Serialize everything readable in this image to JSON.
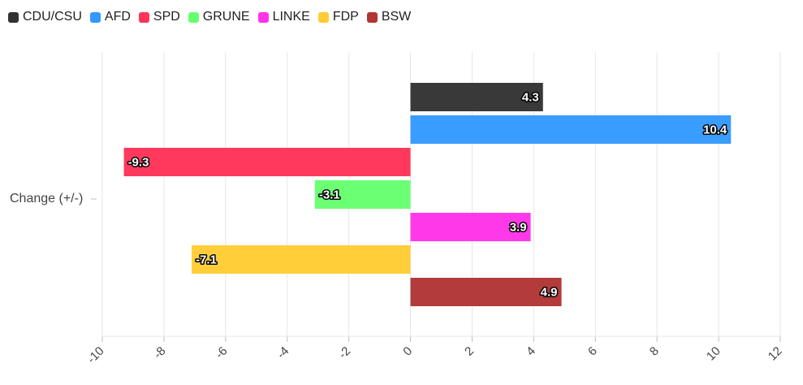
{
  "chart_data": {
    "type": "bar",
    "orientation": "horizontal",
    "categories": [
      "Change (+/-)"
    ],
    "series": [
      {
        "name": "CDU/CSU",
        "values": [
          4.3
        ],
        "color": "#333333"
      },
      {
        "name": "AFD",
        "values": [
          10.4
        ],
        "color": "#3399ff"
      },
      {
        "name": "SPD",
        "values": [
          -9.3
        ],
        "color": "#ff3358"
      },
      {
        "name": "GRUNE",
        "values": [
          -3.1
        ],
        "color": "#66ff70"
      },
      {
        "name": "LINKE",
        "values": [
          3.9
        ],
        "color": "#ff33e8"
      },
      {
        "name": "FDP",
        "values": [
          -7.1
        ],
        "color": "#ffcc33"
      },
      {
        "name": "BSW",
        "values": [
          4.9
        ],
        "color": "#b13535"
      }
    ],
    "xlim": [
      -10,
      12
    ],
    "xticks": [
      "-10",
      "-8",
      "-6",
      "-4",
      "-2",
      "0",
      "2",
      "4",
      "6",
      "8",
      "10",
      "12"
    ],
    "grid": true,
    "legend_position": "top-left",
    "data_labels": [
      "4.3",
      "10.4",
      "-9.3",
      "-3.1",
      "3.9",
      "-7.1",
      "4.9"
    ]
  }
}
